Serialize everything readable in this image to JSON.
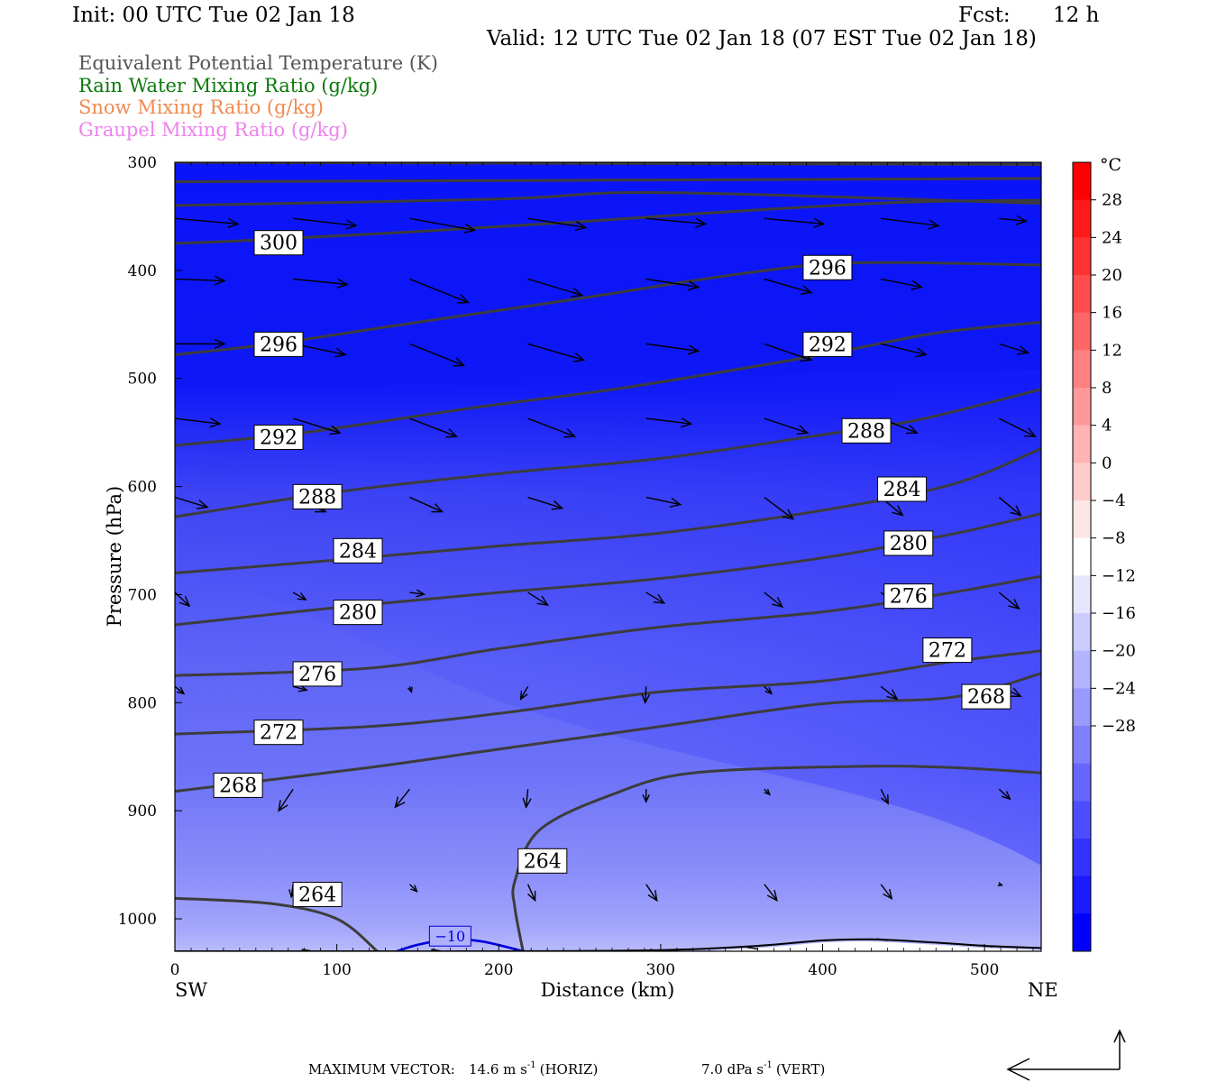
{
  "header": {
    "init": "Init: 00 UTC Tue 02 Jan 18",
    "fcst_label": "Fcst:",
    "fcst_value": "12 h",
    "valid": "Valid: 12 UTC Tue 02 Jan 18 (07 EST Tue 02 Jan 18)"
  },
  "field_titles": [
    {
      "text": "Equivalent Potential Temperature (K)",
      "color": "#555555"
    },
    {
      "text": "Rain Water Mixing Ratio (g/kg)",
      "color": "#0a7a0a"
    },
    {
      "text": "Snow Mixing Ratio (g/kg)",
      "color": "#f08a50"
    },
    {
      "text": "Graupel Mixing Ratio (g/kg)",
      "color": "#ee82ee"
    }
  ],
  "chart_data": {
    "type": "contour",
    "xlabel": "Distance (km)",
    "ylabel": "Pressure (hPa)",
    "x_ticks": [
      0,
      100,
      200,
      300,
      400,
      500
    ],
    "y_ticks": [
      300,
      400,
      500,
      600,
      700,
      800,
      900,
      1000
    ],
    "xlim": [
      0,
      535
    ],
    "ylim": [
      1030,
      300
    ],
    "x_end_labels": {
      "left": "SW",
      "right": "NE"
    },
    "colorbar": {
      "unit": "°C",
      "tick_labels": [
        "28",
        "24",
        "20",
        "16",
        "12",
        "8",
        "4",
        "0",
        "−4",
        "−8",
        "−12",
        "−16",
        "−20",
        "−24",
        "−28"
      ],
      "tick_values": [
        28,
        24,
        20,
        16,
        12,
        8,
        4,
        0,
        -4,
        -8,
        -12,
        -16,
        -20,
        -24,
        -28
      ]
    },
    "temperature_label": "−10",
    "theta_e_contours": [
      {
        "value": 300,
        "points": [
          [
            0,
            375
          ],
          [
            50,
            372
          ],
          [
            150,
            364
          ],
          [
            250,
            355
          ],
          [
            350,
            345
          ],
          [
            450,
            337
          ],
          [
            535,
            335
          ]
        ]
      },
      {
        "value": 296,
        "points": [
          [
            0,
            478
          ],
          [
            60,
            468
          ],
          [
            150,
            448
          ],
          [
            250,
            426
          ],
          [
            350,
            403
          ],
          [
            420,
            393
          ],
          [
            535,
            395
          ]
        ]
      },
      {
        "value": 292,
        "points": [
          [
            0,
            562
          ],
          [
            80,
            550
          ],
          [
            180,
            528
          ],
          [
            280,
            508
          ],
          [
            400,
            478
          ],
          [
            470,
            458
          ],
          [
            535,
            448
          ]
        ]
      },
      {
        "value": 288,
        "points": [
          [
            0,
            628
          ],
          [
            100,
            605
          ],
          [
            200,
            588
          ],
          [
            300,
            574
          ],
          [
            400,
            552
          ],
          [
            460,
            538
          ],
          [
            535,
            510
          ]
        ]
      },
      {
        "value": 284,
        "points": [
          [
            0,
            680
          ],
          [
            100,
            668
          ],
          [
            200,
            655
          ],
          [
            300,
            643
          ],
          [
            400,
            622
          ],
          [
            480,
            598
          ],
          [
            535,
            565
          ]
        ]
      },
      {
        "value": 280,
        "points": [
          [
            0,
            728
          ],
          [
            100,
            712
          ],
          [
            200,
            698
          ],
          [
            300,
            685
          ],
          [
            400,
            666
          ],
          [
            480,
            644
          ],
          [
            535,
            625
          ]
        ]
      },
      {
        "value": 276,
        "points": [
          [
            0,
            775
          ],
          [
            120,
            768
          ],
          [
            200,
            750
          ],
          [
            300,
            730
          ],
          [
            400,
            716
          ],
          [
            480,
            698
          ],
          [
            535,
            683
          ]
        ]
      },
      {
        "value": 272,
        "points": [
          [
            0,
            829
          ],
          [
            120,
            822
          ],
          [
            200,
            810
          ],
          [
            300,
            790
          ],
          [
            400,
            780
          ],
          [
            480,
            762
          ],
          [
            535,
            752
          ]
        ]
      },
      {
        "value": 268,
        "points": [
          [
            0,
            882
          ],
          [
            120,
            860
          ],
          [
            200,
            843
          ],
          [
            300,
            822
          ],
          [
            400,
            801
          ],
          [
            480,
            795
          ],
          [
            535,
            773
          ]
        ]
      },
      {
        "value": 264,
        "points": [
          [
            0,
            981
          ],
          [
            60,
            986
          ],
          [
            100,
            1000
          ],
          [
            125,
            1030
          ]
        ]
      },
      {
        "value": 264,
        "points": [
          [
            215,
            1030
          ],
          [
            210,
            990
          ],
          [
            210,
            965
          ],
          [
            225,
            918
          ],
          [
            270,
            885
          ],
          [
            320,
            865
          ],
          [
            420,
            859
          ],
          [
            480,
            860
          ],
          [
            535,
            865
          ]
        ]
      }
    ],
    "contour_labels": [
      {
        "text": "300",
        "x": 49,
        "y": 374
      },
      {
        "text": "296",
        "x": 49,
        "y": 468
      },
      {
        "text": "292",
        "x": 49,
        "y": 554
      },
      {
        "text": "288",
        "x": 73,
        "y": 609
      },
      {
        "text": "284",
        "x": 98,
        "y": 659
      },
      {
        "text": "280",
        "x": 98,
        "y": 716
      },
      {
        "text": "276",
        "x": 73,
        "y": 773
      },
      {
        "text": "272",
        "x": 49,
        "y": 827
      },
      {
        "text": "268",
        "x": 24,
        "y": 876
      },
      {
        "text": "264",
        "x": 73,
        "y": 977
      },
      {
        "text": "264",
        "x": 212,
        "y": 946
      },
      {
        "text": "296",
        "x": 388,
        "y": 397
      },
      {
        "text": "292",
        "x": 388,
        "y": 468
      },
      {
        "text": "288",
        "x": 412,
        "y": 548
      },
      {
        "text": "284",
        "x": 434,
        "y": 602
      },
      {
        "text": "280",
        "x": 438,
        "y": 652
      },
      {
        "text": "276",
        "x": 438,
        "y": 701
      },
      {
        "text": "272",
        "x": 462,
        "y": 751
      },
      {
        "text": "268",
        "x": 486,
        "y": 794
      }
    ],
    "wind_vectors": [
      {
        "x": 0,
        "p": 352,
        "u": 70,
        "v": 6
      },
      {
        "x": 73,
        "p": 352,
        "u": 70,
        "v": 8
      },
      {
        "x": 145,
        "p": 352,
        "u": 72,
        "v": 13
      },
      {
        "x": 218,
        "p": 352,
        "u": 64,
        "v": 10
      },
      {
        "x": 291,
        "p": 352,
        "u": 66,
        "v": 6
      },
      {
        "x": 364,
        "p": 352,
        "u": 66,
        "v": 6
      },
      {
        "x": 436,
        "p": 352,
        "u": 64,
        "v": 8
      },
      {
        "x": 509,
        "p": 352,
        "u": 30,
        "v": 3
      },
      {
        "x": 0,
        "p": 408,
        "u": 55,
        "v": 2
      },
      {
        "x": 73,
        "p": 408,
        "u": 60,
        "v": 6
      },
      {
        "x": 145,
        "p": 408,
        "u": 65,
        "v": 26
      },
      {
        "x": 218,
        "p": 408,
        "u": 60,
        "v": 18
      },
      {
        "x": 291,
        "p": 408,
        "u": 58,
        "v": 9
      },
      {
        "x": 364,
        "p": 408,
        "u": 52,
        "v": 15
      },
      {
        "x": 436,
        "p": 408,
        "u": 45,
        "v": 9
      },
      {
        "x": 0,
        "p": 468,
        "u": 55,
        "v": 0
      },
      {
        "x": 73,
        "p": 468,
        "u": 58,
        "v": 12
      },
      {
        "x": 145,
        "p": 468,
        "u": 60,
        "v": 24
      },
      {
        "x": 218,
        "p": 468,
        "u": 62,
        "v": 18
      },
      {
        "x": 291,
        "p": 468,
        "u": 58,
        "v": 8
      },
      {
        "x": 364,
        "p": 468,
        "u": 52,
        "v": 18
      },
      {
        "x": 436,
        "p": 468,
        "u": 50,
        "v": 12
      },
      {
        "x": 509,
        "p": 468,
        "u": 32,
        "v": 10
      },
      {
        "x": 0,
        "p": 537,
        "u": 50,
        "v": 6
      },
      {
        "x": 73,
        "p": 537,
        "u": 52,
        "v": 16
      },
      {
        "x": 145,
        "p": 537,
        "u": 52,
        "v": 20
      },
      {
        "x": 218,
        "p": 537,
        "u": 52,
        "v": 20
      },
      {
        "x": 291,
        "p": 537,
        "u": 50,
        "v": 6
      },
      {
        "x": 364,
        "p": 537,
        "u": 48,
        "v": 16
      },
      {
        "x": 436,
        "p": 537,
        "u": 40,
        "v": 16
      },
      {
        "x": 509,
        "p": 537,
        "u": 40,
        "v": 20
      },
      {
        "x": 0,
        "p": 610,
        "u": 36,
        "v": 11
      },
      {
        "x": 73,
        "p": 610,
        "u": 36,
        "v": 16
      },
      {
        "x": 145,
        "p": 610,
        "u": 36,
        "v": 16
      },
      {
        "x": 218,
        "p": 610,
        "u": 38,
        "v": 12
      },
      {
        "x": 291,
        "p": 610,
        "u": 38,
        "v": 8
      },
      {
        "x": 364,
        "p": 610,
        "u": 32,
        "v": 24
      },
      {
        "x": 436,
        "p": 610,
        "u": 24,
        "v": 20
      },
      {
        "x": 509,
        "p": 610,
        "u": 24,
        "v": 20
      },
      {
        "x": 0,
        "p": 698,
        "u": 16,
        "v": 15
      },
      {
        "x": 73,
        "p": 698,
        "u": 14,
        "v": 8
      },
      {
        "x": 145,
        "p": 698,
        "u": 16,
        "v": 2
      },
      {
        "x": 218,
        "p": 698,
        "u": 22,
        "v": 14
      },
      {
        "x": 291,
        "p": 698,
        "u": 20,
        "v": 12
      },
      {
        "x": 364,
        "p": 698,
        "u": 20,
        "v": 16
      },
      {
        "x": 436,
        "p": 698,
        "u": 24,
        "v": 18
      },
      {
        "x": 509,
        "p": 698,
        "u": 22,
        "v": 18
      },
      {
        "x": 0,
        "p": 785,
        "u": 10,
        "v": 8
      },
      {
        "x": 73,
        "p": 785,
        "u": 15,
        "v": 4
      },
      {
        "x": 145,
        "p": 785,
        "u": 2,
        "v": 6
      },
      {
        "x": 218,
        "p": 785,
        "u": -8,
        "v": 14
      },
      {
        "x": 291,
        "p": 785,
        "u": -1,
        "v": 18
      },
      {
        "x": 364,
        "p": 785,
        "u": 8,
        "v": 8
      },
      {
        "x": 436,
        "p": 785,
        "u": 18,
        "v": 14
      },
      {
        "x": 509,
        "p": 785,
        "u": 24,
        "v": 11
      },
      {
        "x": 73,
        "p": 880,
        "u": -16,
        "v": 24
      },
      {
        "x": 145,
        "p": 880,
        "u": -16,
        "v": 20
      },
      {
        "x": 218,
        "p": 880,
        "u": -2,
        "v": 20
      },
      {
        "x": 291,
        "p": 880,
        "u": 0,
        "v": 14
      },
      {
        "x": 364,
        "p": 880,
        "u": 6,
        "v": 6
      },
      {
        "x": 436,
        "p": 880,
        "u": 8,
        "v": 16
      },
      {
        "x": 509,
        "p": 880,
        "u": 12,
        "v": 11
      },
      {
        "x": 73,
        "p": 968,
        "u": -2,
        "v": 14
      },
      {
        "x": 145,
        "p": 968,
        "u": 8,
        "v": 8
      },
      {
        "x": 218,
        "p": 968,
        "u": 8,
        "v": 18
      },
      {
        "x": 291,
        "p": 968,
        "u": 12,
        "v": 18
      },
      {
        "x": 364,
        "p": 968,
        "u": 14,
        "v": 18
      },
      {
        "x": 436,
        "p": 968,
        "u": 12,
        "v": 16
      },
      {
        "x": 509,
        "p": 968,
        "u": 3,
        "v": 1
      }
    ]
  },
  "footer": {
    "max_vector_label": "MAXIMUM VECTOR:",
    "horiz_value": "14.6 m s",
    "horiz_exp": "-1",
    "horiz_tag": "(HORIZ)",
    "vert_value": "7.0 dPa s",
    "vert_exp": "-1",
    "vert_tag": "(VERT)"
  },
  "colors": {
    "contour_line": "#3c3c3c",
    "temperature_line": "#0000dd",
    "surface_line": "#000000",
    "colorbar": [
      "#ff0000",
      "#ff1a1a",
      "#ff3333",
      "#ff4d4d",
      "#ff6666",
      "#ff8080",
      "#ff9999",
      "#ffb3b3",
      "#ffcccc",
      "#ffe6e6",
      "#ffffff",
      "#e6e6ff",
      "#ccccff",
      "#b3b3ff",
      "#9999ff",
      "#8080ff",
      "#6666ff",
      "#4d4dff",
      "#3333ff",
      "#1a1aff",
      "#0000ff"
    ]
  }
}
